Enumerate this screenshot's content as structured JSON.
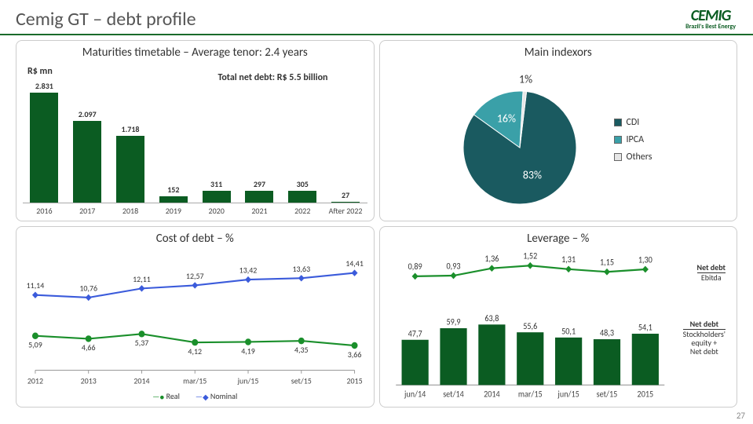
{
  "header": {
    "title": "Cemig GT – debt profile",
    "logo_main": "CEMIG",
    "logo_sub": "Brazil's Best Energy"
  },
  "page_number": "27",
  "panels": {
    "maturities": {
      "title": "Maturities timetable – Average tenor: 2.4 years",
      "y_label": "R$ mn",
      "total_label": "Total net debt: R$ 5.5 billion",
      "bar_color": "#0b5c22",
      "max_value": 2831,
      "categories": [
        "2016",
        "2017",
        "2018",
        "2019",
        "2020",
        "2021",
        "2022",
        "After 2022"
      ],
      "values": [
        2831,
        2097,
        1718,
        152,
        311,
        297,
        305,
        27
      ],
      "labels": [
        "2.831",
        "2.097",
        "1.718",
        "152",
        "311",
        "297",
        "305",
        "27"
      ],
      "label_fontsize": 10
    },
    "indexors": {
      "title": "Main indexors",
      "slices": [
        {
          "name": "CDI",
          "value": 83,
          "label": "83%",
          "color": "#1a5a60"
        },
        {
          "name": "IPCA",
          "value": 16,
          "label": "16%",
          "color": "#3aa0a8"
        },
        {
          "name": "Others",
          "value": 1,
          "label": "1%",
          "color": "#e6e6e6"
        }
      ],
      "legend": [
        "CDI",
        "IPCA",
        "Others"
      ]
    },
    "cost": {
      "title": "Cost of debt – %",
      "categories": [
        "2012",
        "2013",
        "2014",
        "mar/15",
        "jun/15",
        "set/15",
        "2015"
      ],
      "series": [
        {
          "name": "Real",
          "color": "#1a8f2b",
          "marker": "circle",
          "values": [
            5.09,
            4.66,
            5.37,
            4.12,
            4.19,
            4.35,
            3.66
          ],
          "labels": [
            "5,09",
            "4,66",
            "5,37",
            "4,12",
            "4,19",
            "4,35",
            "3,66"
          ]
        },
        {
          "name": "Nominal",
          "color": "#3b5bdb",
          "marker": "diamond",
          "values": [
            11.14,
            10.76,
            12.11,
            12.57,
            13.42,
            13.63,
            14.41
          ],
          "labels": [
            "11,14",
            "10,76",
            "12,11",
            "12,57",
            "13,42",
            "13,63",
            "14,41"
          ]
        }
      ],
      "ylim": [
        0,
        16
      ]
    },
    "leverage": {
      "title": "Leverage – %",
      "categories": [
        "jun/14",
        "set/14",
        "2014",
        "mar/15",
        "jun/15",
        "set/15",
        "2015"
      ],
      "line": {
        "name": "Net debt / Ebitda",
        "color": "#1a8f2b",
        "values": [
          0.89,
          0.93,
          1.36,
          1.52,
          1.31,
          1.15,
          1.3
        ],
        "labels": [
          "0,89",
          "0,93",
          "1,36",
          "1,52",
          "1,31",
          "1,15",
          "1,30"
        ]
      },
      "bars": {
        "name": "Net debt / (Stockholders' equity + Net debt)",
        "color": "#0b5c22",
        "values": [
          47.7,
          59.9,
          63.8,
          55.6,
          50.1,
          48.3,
          54.1
        ],
        "labels": [
          "47,7",
          "59,9",
          "63,8",
          "55,6",
          "50,1",
          "48,3",
          "54,1"
        ],
        "max": 70
      },
      "side_top": {
        "num": "Net debt",
        "den": "Ebitda"
      },
      "side_bot": {
        "num": "Net debt",
        "den": "Stockholders'\nequity +\nNet debt"
      }
    }
  }
}
